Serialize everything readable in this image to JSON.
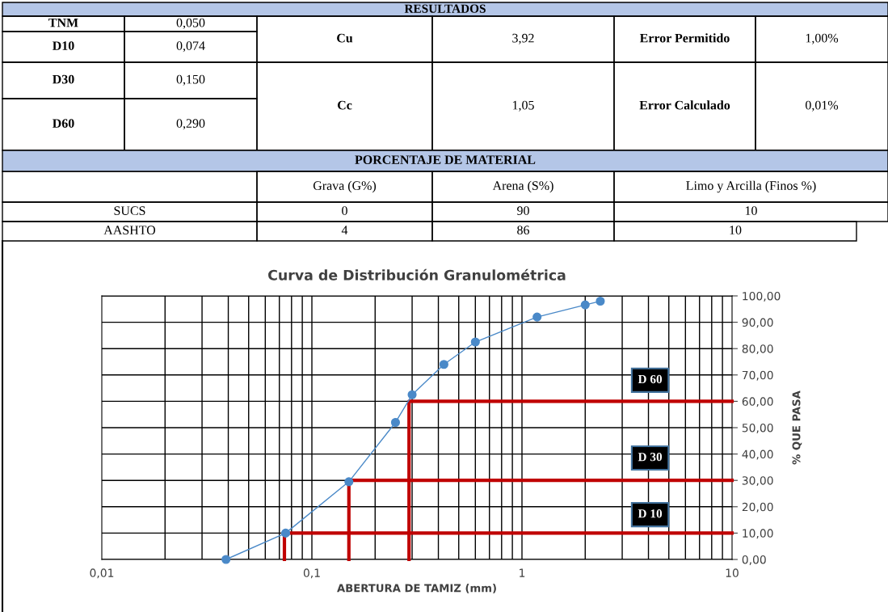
{
  "chart_data": [
    {
      "type": "other",
      "title": "RESULTADOS",
      "annotations": [
        "TNM",
        "0,050",
        "D10",
        "0,074",
        "D30",
        "0,150",
        "D60",
        "0,290",
        "Cu",
        "3,92",
        "Error Permitido",
        "1,00%",
        "Cc",
        "1,05",
        "Error Calculado",
        "0,01%",
        "PORCENTAJE DE MATERIAL",
        "Grava (G%)",
        "Arena (S%)",
        "Limo y Arcilla (Finos %)",
        "SUCS",
        "0",
        "90",
        "10",
        "AASHTO",
        "4",
        "86",
        "10"
      ]
    },
    {
      "type": "line",
      "title": "Curva de Distribución Granulométrica",
      "xlabel": "ABERTURA DE TAMIZ (mm)",
      "ylabel": "% QUE PASA",
      "log": "x",
      "grid": true,
      "marker": "circle",
      "xlim": [
        0.01,
        10
      ],
      "xticks": [
        {
          "value": 0.01,
          "label": "0,01"
        },
        {
          "value": 0.1,
          "label": "0,1"
        },
        {
          "value": 1,
          "label": "1"
        },
        {
          "value": 10,
          "label": "10"
        }
      ],
      "ylim": [
        0,
        100
      ],
      "yticks": [
        {
          "value": 0,
          "label": "0,00"
        },
        {
          "value": 10,
          "label": "10,00"
        },
        {
          "value": 20,
          "label": "20,00"
        },
        {
          "value": 30,
          "label": "30,00"
        },
        {
          "value": 40,
          "label": "40,00"
        },
        {
          "value": 50,
          "label": "50,00"
        },
        {
          "value": 60,
          "label": "60,00"
        },
        {
          "value": 70,
          "label": "70,00"
        },
        {
          "value": 80,
          "label": "80,00"
        },
        {
          "value": 90,
          "label": "90,00"
        },
        {
          "value": 100,
          "label": "100,00"
        }
      ],
      "series": [
        {
          "color": "#4a89c8",
          "x": [
            0.039,
            0.075,
            0.15,
            0.25,
            0.3,
            0.425,
            0.6,
            1.18,
            2,
            2.36
          ],
          "values": [
            0,
            10,
            29.5,
            52,
            62.5,
            74,
            82.5,
            92,
            96.6,
            98
          ]
        },
        {
          "color": "#c00000",
          "marker": "none",
          "x": [
            0.074,
            0.074,
            10
          ],
          "values": [
            0,
            10,
            10
          ]
        },
        {
          "color": "#c00000",
          "marker": "none",
          "x": [
            0.15,
            0.15,
            10
          ],
          "values": [
            0,
            30,
            30
          ]
        },
        {
          "color": "#c00000",
          "marker": "none",
          "x": [
            0.29,
            0.29,
            10
          ],
          "values": [
            0,
            60,
            60
          ]
        }
      ],
      "annotations": [
        "D 60",
        "D 30",
        "D 10"
      ]
    }
  ]
}
